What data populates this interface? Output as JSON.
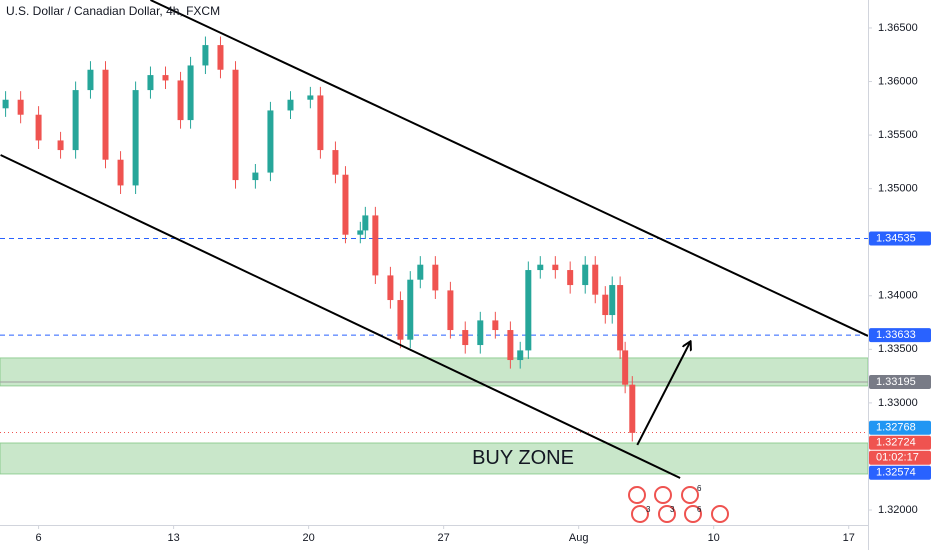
{
  "chart_data": {
    "type": "candlestick",
    "title": "U.S. Dollar / Canadian Dollar, 4h, FXCM",
    "x": [
      4.29,
      5.07,
      6,
      7.14,
      7.92,
      8.69,
      9.47,
      10.25,
      11.03,
      11.8,
      12.58,
      13.36,
      13.88,
      14.65,
      15.43,
      16.21,
      17.24,
      18.02,
      19.06,
      20.09,
      20.61,
      21.39,
      21.91,
      22.68,
      22.94,
      23.46,
      24.24,
      24.76,
      25.27,
      25.79,
      26.57,
      27.35,
      28.12,
      28.9,
      29.68,
      30.46,
      30.97,
      31.39,
      32.01,
      32.79,
      33.56,
      34.34,
      34.86,
      35.38,
      35.74,
      36.15,
      36.41,
      36.78
    ],
    "open": [
      1.3575,
      1.3583,
      1.3569,
      1.3545,
      1.3536,
      1.3592,
      1.3611,
      1.3527,
      1.3503,
      1.3592,
      1.3606,
      1.3601,
      1.3564,
      1.3615,
      1.3634,
      1.3611,
      1.3508,
      1.3515,
      1.3573,
      1.3583,
      1.3587,
      1.3536,
      1.3513,
      1.3457,
      1.3461,
      1.3475,
      1.3419,
      1.3396,
      1.3359,
      1.3415,
      1.3429,
      1.3405,
      1.3368,
      1.3354,
      1.3377,
      1.3368,
      1.334,
      1.3349,
      1.3424,
      1.3429,
      1.3424,
      1.341,
      1.3429,
      1.3401,
      1.3382,
      1.341,
      1.3349,
      1.3317
    ],
    "high": [
      1.3591,
      1.3591,
      1.3577,
      1.3553,
      1.36,
      1.3619,
      1.3619,
      1.3535,
      1.36,
      1.3614,
      1.3614,
      1.3609,
      1.3623,
      1.3642,
      1.3642,
      1.3619,
      1.3523,
      1.3581,
      1.3591,
      1.3595,
      1.3595,
      1.3544,
      1.3521,
      1.3469,
      1.3483,
      1.3483,
      1.3427,
      1.3404,
      1.3423,
      1.3437,
      1.3437,
      1.3413,
      1.3376,
      1.3385,
      1.3385,
      1.3376,
      1.3357,
      1.3432,
      1.3437,
      1.3437,
      1.3432,
      1.3437,
      1.3437,
      1.3409,
      1.3418,
      1.3418,
      1.3357,
      1.3325
    ],
    "low": [
      1.3567,
      1.3561,
      1.3537,
      1.3528,
      1.3528,
      1.3584,
      1.3519,
      1.3495,
      1.3495,
      1.3584,
      1.3593,
      1.3556,
      1.3556,
      1.3607,
      1.3603,
      1.35,
      1.35,
      1.3507,
      1.3565,
      1.3575,
      1.3528,
      1.3505,
      1.3449,
      1.3449,
      1.3453,
      1.3411,
      1.3388,
      1.3351,
      1.3351,
      1.3407,
      1.3397,
      1.336,
      1.3346,
      1.3346,
      1.336,
      1.3332,
      1.3332,
      1.3341,
      1.3416,
      1.3416,
      1.3402,
      1.3402,
      1.3393,
      1.3374,
      1.3374,
      1.3341,
      1.3309,
      1.3264
    ],
    "close": [
      1.3583,
      1.3569,
      1.3545,
      1.3536,
      1.3592,
      1.3611,
      1.3527,
      1.3503,
      1.3592,
      1.3606,
      1.3601,
      1.3564,
      1.3615,
      1.3634,
      1.3611,
      1.3508,
      1.3515,
      1.3573,
      1.3583,
      1.3587,
      1.3536,
      1.3513,
      1.3457,
      1.3461,
      1.3475,
      1.3419,
      1.3396,
      1.3359,
      1.3415,
      1.3429,
      1.3405,
      1.3368,
      1.3354,
      1.3377,
      1.3368,
      1.334,
      1.3349,
      1.3424,
      1.3429,
      1.3424,
      1.341,
      1.3429,
      1.3401,
      1.3382,
      1.341,
      1.3349,
      1.3317,
      1.3272
    ],
    "up_color": "#26a69a",
    "down_color": "#ef5350",
    "xlim": [
      4,
      49
    ],
    "xticks": [
      6,
      13,
      20,
      27,
      {
        "value": 34,
        "label": "Aug"
      },
      {
        "value": 41,
        "label": "10"
      },
      {
        "value": 48,
        "label": "17"
      }
    ],
    "ylim": [
      1.3186,
      1.36761
    ],
    "yticks": [
      {
        "value": 1.32,
        "label": "1.32000"
      },
      {
        "value": 1.325,
        "label": "1.32500"
      },
      {
        "value": 1.33,
        "label": "1.33000"
      },
      {
        "value": 1.335,
        "label": "1.33500"
      },
      {
        "value": 1.34,
        "label": "1.34000"
      },
      {
        "value": 1.345,
        "label": "1.34500"
      },
      {
        "value": 1.35,
        "label": "1.35000"
      },
      {
        "value": 1.355,
        "label": "1.35500"
      },
      {
        "value": 1.36,
        "label": "1.36000"
      },
      {
        "value": 1.365,
        "label": "1.36500"
      }
    ],
    "zones": [
      {
        "low": 1.33158,
        "high": 1.3342,
        "color": "#4caf50"
      },
      {
        "low": 1.32336,
        "high": 1.32626,
        "color": "#4caf50"
      }
    ],
    "zone_label": "BUY ZONE",
    "levels": [
      {
        "value": 1.34535,
        "color": "#2962ff",
        "style": "dashed"
      },
      {
        "value": 1.33633,
        "color": "#2962ff",
        "style": "dashed"
      },
      {
        "value": 1.33195,
        "color": "#9e9e9e",
        "style": "solid"
      },
      {
        "value": 1.32724,
        "color": "#ef5350",
        "style": "dotted"
      }
    ],
    "trendlines": [
      {
        "x": [
          11.8,
          49
        ],
        "y": [
          1.36761,
          1.33625
        ],
        "color": "#000000"
      },
      {
        "x": [
          4.03,
          39.26
        ],
        "y": [
          1.35314,
          1.32299
        ],
        "color": "#000000"
      }
    ],
    "arrow": {
      "x": [
        37.04,
        39.78
      ],
      "y": [
        1.32607,
        1.33568
      ],
      "color": "#000000"
    },
    "price_tags": [
      {
        "value": 1.34535,
        "color": "#2962ff"
      },
      {
        "value": 1.33633,
        "color": "#2962ff"
      },
      {
        "value": 1.33195,
        "color": "#787b86"
      },
      {
        "value": 1.32768,
        "color": "#2196f3"
      },
      {
        "value": 1.32724,
        "color": "#ef5350",
        "countdown": "01:02:17"
      },
      {
        "value": 1.32574,
        "color": "#2962ff"
      }
    ],
    "events": [
      6,
      3,
      3,
      6
    ]
  }
}
